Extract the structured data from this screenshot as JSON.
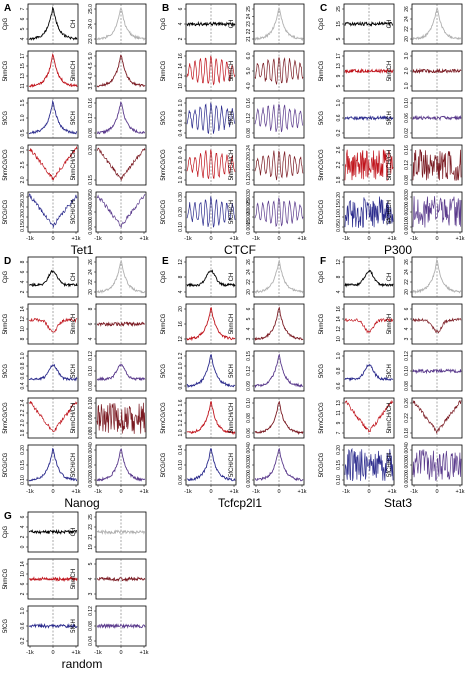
{
  "colors": {
    "CpG": "#000000",
    "CH": "#b0b0b0",
    "5hmCG": "#c0141c",
    "5hmCH": "#7a1a22",
    "5fCG": "#2a2a8c",
    "5fCH": "#5a3a8c",
    "5hmCG/CG": "#c0141c",
    "5hmCH/CH": "#7a1a22",
    "5fCG/CG": "#2a2a8c",
    "5fCH/CH": "#5a3a8c"
  },
  "chart_data": [
    {
      "panel": "A",
      "name": "Tet1",
      "type": "line",
      "x_ticks": [
        "-1k",
        "0",
        "+1k"
      ],
      "plots": [
        {
          "left_label": "CpG",
          "left_ticks": [
            "7",
            "6",
            "5",
            "4"
          ],
          "left_shape": "peak",
          "right_label": "CH",
          "right_ticks": [
            "25.0",
            "24.0",
            "23.0"
          ],
          "right_shape": "peak"
        },
        {
          "left_label": "5hmCG",
          "left_ticks": [
            "17",
            "15",
            "13",
            "11"
          ],
          "left_shape": "peak",
          "right_label": "5hmCH",
          "right_ticks": [
            "5.0",
            "4.5",
            "4.0",
            "3.5"
          ],
          "right_shape": "peak"
        },
        {
          "left_label": "5fCG",
          "left_ticks": [
            "1.5",
            "1.0",
            "0.5"
          ],
          "left_shape": "peak",
          "right_label": "5fCH",
          "right_ticks": [
            "0.16",
            "0.12",
            "0.08"
          ],
          "right_shape": "peak"
        },
        {
          "left_label": "5hmCG/CG",
          "left_ticks": [
            "3.0",
            "2.5",
            "2.0"
          ],
          "left_shape": "v",
          "right_label": "5hmCH/CH",
          "right_ticks": [
            "0.20",
            "0.15"
          ],
          "right_shape": "v"
        },
        {
          "left_label": "5fCG/CG",
          "left_ticks": [
            "0.30",
            "0.25",
            "0.20",
            "0.15"
          ],
          "left_shape": "v",
          "right_label": "5fCH/CH",
          "right_ticks": [
            "0.0050",
            "0.0040",
            "0.0030"
          ],
          "right_shape": "v"
        }
      ]
    },
    {
      "panel": "B",
      "name": "CTCF",
      "type": "line",
      "x_ticks": [
        "-1k",
        "0",
        "+1k"
      ],
      "plots": [
        {
          "left_label": "CpG",
          "left_ticks": [
            "6",
            "4",
            "2"
          ],
          "left_shape": "flat",
          "right_label": "CH",
          "right_ticks": [
            "25",
            "24",
            "23",
            "22",
            "21"
          ],
          "right_shape": "peak"
        },
        {
          "left_label": "5hmCG",
          "left_ticks": [
            "16",
            "14",
            "12",
            "10"
          ],
          "left_shape": "osc",
          "right_label": "5hmCH",
          "right_ticks": [
            "6.0",
            "5.0",
            "4.0"
          ],
          "right_shape": "osc"
        },
        {
          "left_label": "5fCG",
          "left_ticks": [
            "1.0",
            "0.8",
            "0.6",
            "0.4"
          ],
          "left_shape": "osc",
          "right_label": "5fCH",
          "right_ticks": [
            "0.16",
            "0.12",
            "0.08"
          ],
          "right_shape": "osc"
        },
        {
          "left_label": "5hmCG/CG",
          "left_ticks": [
            "4.0",
            "3.0",
            "2.0",
            "1.0"
          ],
          "left_shape": "osc",
          "right_label": "5hmCH/CH",
          "right_ticks": [
            "0.24",
            "0.20",
            "0.16",
            "0.12"
          ],
          "right_shape": "osc"
        },
        {
          "left_label": "5fCG/CG",
          "left_ticks": [
            "0.30",
            "0.20",
            "0.10"
          ],
          "left_shape": "osc",
          "right_label": "5fCH/CH",
          "right_ticks": [
            "0.0030",
            "0.0025",
            "0.0020",
            "0.0015"
          ],
          "right_shape": "osc"
        }
      ]
    },
    {
      "panel": "C",
      "name": "P300",
      "type": "line",
      "x_ticks": [
        "-1k",
        "0",
        "+1k"
      ],
      "plots": [
        {
          "left_label": "CpG",
          "left_ticks": [
            "25",
            "15",
            "5"
          ],
          "left_shape": "flat",
          "right_label": "CH",
          "right_ticks": [
            "26",
            "24",
            "22",
            "20"
          ],
          "right_shape": "peak"
        },
        {
          "left_label": "5hmCG",
          "left_ticks": [
            "17",
            "13",
            "9",
            "5"
          ],
          "left_shape": "flat",
          "right_label": "5hmCH",
          "right_ticks": [
            "3.0",
            "2.0",
            "1.0"
          ],
          "right_shape": "flat"
        },
        {
          "left_label": "5fCG",
          "left_ticks": [
            "1.0",
            "0.6",
            "0.2"
          ],
          "left_shape": "flat",
          "right_label": "5fCH",
          "right_ticks": [
            "0.10",
            "0.06",
            "0.02"
          ],
          "right_shape": "flat"
        },
        {
          "left_label": "5hmCG/CG",
          "left_ticks": [
            "2.6",
            "2.2",
            "1.8"
          ],
          "left_shape": "noisy",
          "right_label": "5hmCH/CH",
          "right_ticks": [
            "0.16",
            "0.12",
            "0.08"
          ],
          "right_shape": "noisy"
        },
        {
          "left_label": "5fCG/CG",
          "left_ticks": [
            "0.20",
            "0.15",
            "0.10",
            "0.05"
          ],
          "left_shape": "noisy",
          "right_label": "5fCH/CH",
          "right_ticks": [
            "0.0030",
            "0.0020",
            "0.0010"
          ],
          "right_shape": "noisy"
        }
      ]
    },
    {
      "panel": "D",
      "name": "Nanog",
      "type": "line",
      "x_ticks": [
        "-1k",
        "0",
        "+1k"
      ],
      "plots": [
        {
          "left_label": "CpG",
          "left_ticks": [
            "8",
            "6",
            "4",
            "2"
          ],
          "left_shape": "bump",
          "right_label": "CH",
          "right_ticks": [
            "26",
            "24",
            "22",
            "20"
          ],
          "right_shape": "peak"
        },
        {
          "left_label": "5hmCG",
          "left_ticks": [
            "14",
            "12",
            "10",
            "8"
          ],
          "left_shape": "dip",
          "right_label": "5hmCH",
          "right_ticks": [
            "8",
            "6",
            "4"
          ],
          "right_shape": "flat"
        },
        {
          "left_label": "5fCG",
          "left_ticks": [
            "1.0",
            "0.8",
            "0.6",
            "0.4"
          ],
          "left_shape": "bump",
          "right_label": "5fCH",
          "right_ticks": [
            "0.12",
            "0.10",
            "0.08"
          ],
          "right_shape": "bump"
        },
        {
          "left_label": "5hmCG/CG",
          "left_ticks": [
            "2.4",
            "2.2",
            "2.0",
            "1.8"
          ],
          "left_shape": "v",
          "right_label": "5hmCH/CH",
          "right_ticks": [
            "0.100",
            "0.090",
            "0.080"
          ],
          "right_shape": "noisy"
        },
        {
          "left_label": "5fCG/CG",
          "left_ticks": [
            "0.20",
            "0.15",
            "0.10"
          ],
          "left_shape": "peak",
          "right_label": "5fCH/CH",
          "right_ticks": [
            "0.0040",
            "0.0030",
            "0.0020"
          ],
          "right_shape": "peak"
        }
      ]
    },
    {
      "panel": "E",
      "name": "Tcfcp2l1",
      "type": "line",
      "x_ticks": [
        "-1k",
        "0",
        "+1k"
      ],
      "plots": [
        {
          "left_label": "CpG",
          "left_ticks": [
            "12",
            "8",
            "4"
          ],
          "left_shape": "bump",
          "right_label": "CH",
          "right_ticks": [
            "26",
            "24",
            "22",
            "20"
          ],
          "right_shape": "peak"
        },
        {
          "left_label": "5hmCG",
          "left_ticks": [
            "20",
            "16",
            "12"
          ],
          "left_shape": "peak",
          "right_label": "5hmCH",
          "right_ticks": [
            "6",
            "5",
            "4",
            "3"
          ],
          "right_shape": "peak"
        },
        {
          "left_label": "5fCG",
          "left_ticks": [
            "1.2",
            "1.0",
            "0.8",
            "0.6"
          ],
          "left_shape": "peak",
          "right_label": "5fCH",
          "right_ticks": [
            "0.15",
            "0.12",
            "0.09"
          ],
          "right_shape": "peak"
        },
        {
          "left_label": "5hmCG/CG",
          "left_ticks": [
            "1.6",
            "1.4",
            "1.2",
            "1.0"
          ],
          "left_shape": "peak",
          "right_label": "5hmCH/CH",
          "right_ticks": [
            "0.10",
            "0.08",
            "0.06"
          ],
          "right_shape": "peak"
        },
        {
          "left_label": "5fCG/CG",
          "left_ticks": [
            "0.14",
            "0.10",
            "0.06"
          ],
          "left_shape": "peak",
          "right_label": "5fCH/CH",
          "right_ticks": [
            "0.0040",
            "0.0030",
            "0.0020"
          ],
          "right_shape": "peak"
        }
      ]
    },
    {
      "panel": "F",
      "name": "Stat3",
      "type": "line",
      "x_ticks": [
        "-1k",
        "0",
        "+1k"
      ],
      "plots": [
        {
          "left_label": "CpG",
          "left_ticks": [
            "12",
            "8",
            "4"
          ],
          "left_shape": "bump",
          "right_label": "CH",
          "right_ticks": [
            "26",
            "24",
            "22",
            "20"
          ],
          "right_shape": "peak"
        },
        {
          "left_label": "5hmCG",
          "left_ticks": [
            "16",
            "14",
            "12",
            "10"
          ],
          "left_shape": "dip",
          "right_label": "5hmCH",
          "right_ticks": [
            "6",
            "5",
            "4",
            "3"
          ],
          "right_shape": "dip"
        },
        {
          "left_label": "5fCG",
          "left_ticks": [
            "1.0",
            "0.8",
            "0.6"
          ],
          "left_shape": "bump",
          "right_label": "5fCH",
          "right_ticks": [
            "0.12",
            "0.10",
            "0.08"
          ],
          "right_shape": "flat"
        },
        {
          "left_label": "5hmCG/CG",
          "left_ticks": [
            "13",
            "11",
            "9",
            "7"
          ],
          "left_shape": "v",
          "right_label": "5hmCH/CH",
          "right_ticks": [
            "0.26",
            "0.22",
            "0.18"
          ],
          "right_shape": "v"
        },
        {
          "left_label": "5fCG/CG",
          "left_ticks": [
            "0.20",
            "0.15",
            "0.10"
          ],
          "left_shape": "noisy",
          "right_label": "5fCH/CH",
          "right_ticks": [
            "0.0040",
            "0.0030",
            "0.0020"
          ],
          "right_shape": "noisy"
        }
      ]
    },
    {
      "panel": "G",
      "name": "random",
      "type": "line",
      "x_ticks": [
        "-1k",
        "0",
        "+1k"
      ],
      "plots": [
        {
          "left_label": "CpG",
          "left_ticks": [
            "6",
            "4",
            "2",
            "0"
          ],
          "left_shape": "flat",
          "right_label": "CH",
          "right_ticks": [
            "25",
            "23",
            "21",
            "19"
          ],
          "right_shape": "flat"
        },
        {
          "left_label": "5hmCG",
          "left_ticks": [
            "14",
            "10",
            "6",
            "2"
          ],
          "left_shape": "flat",
          "right_label": "5hmCH",
          "right_ticks": [
            "5",
            "4",
            "3"
          ],
          "right_shape": "flat"
        },
        {
          "left_label": "5fCG",
          "left_ticks": [
            "1.0",
            "0.6",
            "0.2"
          ],
          "left_shape": "flat",
          "right_label": "5fCH",
          "right_ticks": [
            "0.12",
            "0.08",
            "0.04"
          ],
          "right_shape": "flat"
        }
      ]
    }
  ]
}
